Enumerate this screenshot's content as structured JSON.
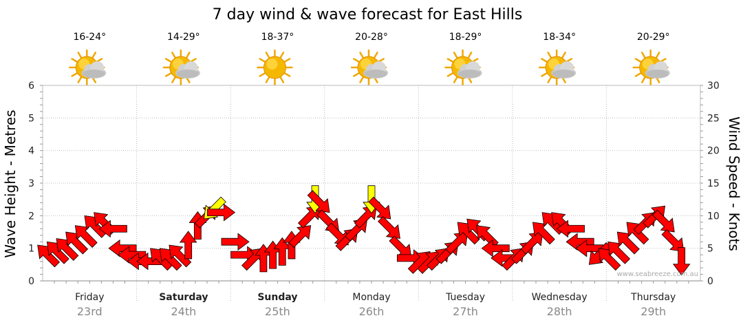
{
  "chart_data": {
    "type": "line",
    "title": "7 day wind & wave forecast for East Hills",
    "ylabel_left": "Wave Height - Metres",
    "ylabel_right": "Wind Speed - Knots",
    "ylim_left": [
      0,
      6
    ],
    "ylim_right": [
      0,
      30
    ],
    "left_ticks": [
      "0",
      "1",
      "2",
      "3",
      "4",
      "5",
      "6"
    ],
    "right_ticks": [
      "0",
      "5",
      "10",
      "15",
      "20",
      "25",
      "30"
    ],
    "grid": true,
    "credit": "www.seabreeze.com.au",
    "days": [
      {
        "name": "Friday",
        "date": "23rd",
        "bold": false,
        "temp": "16-24°",
        "icon": "sun-cloud-icon"
      },
      {
        "name": "Saturday",
        "date": "24th",
        "bold": true,
        "temp": "14-29°",
        "icon": "sun-cloud-icon"
      },
      {
        "name": "Sunday",
        "date": "25th",
        "bold": true,
        "temp": "18-37°",
        "icon": "sun-icon"
      },
      {
        "name": "Monday",
        "date": "26th",
        "bold": false,
        "temp": "20-28°",
        "icon": "sun-cloud-icon"
      },
      {
        "name": "Tuesday",
        "date": "27th",
        "bold": false,
        "temp": "18-29°",
        "icon": "sun-cloud-icon"
      },
      {
        "name": "Wednesday",
        "date": "28th",
        "bold": false,
        "temp": "18-34°",
        "icon": "sun-cloud-icon"
      },
      {
        "name": "Thursday",
        "date": "29th",
        "bold": false,
        "temp": "20-29°",
        "icon": "sun-cloud-icon"
      }
    ],
    "series": [
      {
        "name": "Wind Speed",
        "unit": "knots",
        "colors": {
          "normal": "#ff0000",
          "highlight": "#ffff00",
          "stroke": "#000000"
        },
        "points": [
          {
            "t": 0.05,
            "kn": 4.0,
            "dir": "SE"
          },
          {
            "t": 0.15,
            "kn": 4.5,
            "dir": "SE"
          },
          {
            "t": 0.25,
            "kn": 5.0,
            "dir": "SE"
          },
          {
            "t": 0.35,
            "kn": 6.0,
            "dir": "SE"
          },
          {
            "t": 0.45,
            "kn": 7.0,
            "dir": "SE"
          },
          {
            "t": 0.55,
            "kn": 8.5,
            "dir": "SE"
          },
          {
            "t": 0.65,
            "kn": 9.0,
            "dir": "SE"
          },
          {
            "t": 0.75,
            "kn": 8.0,
            "dir": "E"
          },
          {
            "t": 0.85,
            "kn": 5.0,
            "dir": "E"
          },
          {
            "t": 0.95,
            "kn": 4.0,
            "dir": "E"
          },
          {
            "t": 1.05,
            "kn": 3.0,
            "dir": "E"
          },
          {
            "t": 1.15,
            "kn": 3.0,
            "dir": "E"
          },
          {
            "t": 1.25,
            "kn": 3.5,
            "dir": "SE"
          },
          {
            "t": 1.35,
            "kn": 3.5,
            "dir": "SE"
          },
          {
            "t": 1.45,
            "kn": 4.0,
            "dir": "SE"
          },
          {
            "t": 1.55,
            "kn": 5.5,
            "dir": "S"
          },
          {
            "t": 1.65,
            "kn": 8.5,
            "dir": "S"
          },
          {
            "t": 1.75,
            "kn": 10.0,
            "dir": "SW"
          },
          {
            "t": 1.82,
            "kn": 11.0,
            "dir": "NE",
            "hl": true
          },
          {
            "t": 1.9,
            "kn": 10.5,
            "dir": "W"
          },
          {
            "t": 2.05,
            "kn": 6.0,
            "dir": "W"
          },
          {
            "t": 2.15,
            "kn": 4.0,
            "dir": "W"
          },
          {
            "t": 2.25,
            "kn": 3.5,
            "dir": "SW"
          },
          {
            "t": 2.35,
            "kn": 3.5,
            "dir": "S"
          },
          {
            "t": 2.45,
            "kn": 4.0,
            "dir": "S"
          },
          {
            "t": 2.55,
            "kn": 4.5,
            "dir": "S"
          },
          {
            "t": 2.65,
            "kn": 5.5,
            "dir": "S"
          },
          {
            "t": 2.75,
            "kn": 7.0,
            "dir": "SW"
          },
          {
            "t": 2.85,
            "kn": 10.0,
            "dir": "SW"
          },
          {
            "t": 2.9,
            "kn": 12.5,
            "dir": "N",
            "hl": true
          },
          {
            "t": 2.95,
            "kn": 12.0,
            "dir": "NW"
          },
          {
            "t": 3.05,
            "kn": 9.0,
            "dir": "NW"
          },
          {
            "t": 3.15,
            "kn": 7.0,
            "dir": "NW"
          },
          {
            "t": 3.25,
            "kn": 6.5,
            "dir": "SW"
          },
          {
            "t": 3.35,
            "kn": 8.0,
            "dir": "SW"
          },
          {
            "t": 3.45,
            "kn": 10.0,
            "dir": "SW"
          },
          {
            "t": 3.5,
            "kn": 12.5,
            "dir": "N",
            "hl": true
          },
          {
            "t": 3.6,
            "kn": 11.0,
            "dir": "NW"
          },
          {
            "t": 3.7,
            "kn": 8.0,
            "dir": "NW"
          },
          {
            "t": 3.82,
            "kn": 5.0,
            "dir": "NW"
          },
          {
            "t": 3.92,
            "kn": 3.5,
            "dir": "W"
          },
          {
            "t": 4.02,
            "kn": 3.0,
            "dir": "SW"
          },
          {
            "t": 4.12,
            "kn": 3.0,
            "dir": "SW"
          },
          {
            "t": 4.22,
            "kn": 3.5,
            "dir": "SW"
          },
          {
            "t": 4.32,
            "kn": 4.5,
            "dir": "SW"
          },
          {
            "t": 4.42,
            "kn": 6.0,
            "dir": "SW"
          },
          {
            "t": 4.52,
            "kn": 7.5,
            "dir": "SE"
          },
          {
            "t": 4.62,
            "kn": 8.0,
            "dir": "SE"
          },
          {
            "t": 4.72,
            "kn": 7.0,
            "dir": "SE"
          },
          {
            "t": 4.82,
            "kn": 5.0,
            "dir": "E"
          },
          {
            "t": 4.92,
            "kn": 3.5,
            "dir": "E"
          },
          {
            "t": 5.02,
            "kn": 3.5,
            "dir": "SW"
          },
          {
            "t": 5.12,
            "kn": 4.5,
            "dir": "SW"
          },
          {
            "t": 5.22,
            "kn": 6.0,
            "dir": "SW"
          },
          {
            "t": 5.32,
            "kn": 7.5,
            "dir": "SE"
          },
          {
            "t": 5.42,
            "kn": 9.0,
            "dir": "SE"
          },
          {
            "t": 5.52,
            "kn": 9.0,
            "dir": "SE"
          },
          {
            "t": 5.62,
            "kn": 8.0,
            "dir": "E"
          },
          {
            "t": 5.72,
            "kn": 6.0,
            "dir": "E"
          },
          {
            "t": 5.82,
            "kn": 5.0,
            "dir": "E"
          },
          {
            "t": 5.92,
            "kn": 4.0,
            "dir": "NE"
          },
          {
            "t": 6.02,
            "kn": 3.5,
            "dir": "SE"
          },
          {
            "t": 6.12,
            "kn": 4.5,
            "dir": "SE"
          },
          {
            "t": 6.22,
            "kn": 6.0,
            "dir": "SE"
          },
          {
            "t": 6.32,
            "kn": 7.5,
            "dir": "SE"
          },
          {
            "t": 6.42,
            "kn": 9.0,
            "dir": "SW"
          },
          {
            "t": 6.52,
            "kn": 10.0,
            "dir": "SW"
          },
          {
            "t": 6.62,
            "kn": 9.0,
            "dir": "NW"
          },
          {
            "t": 6.72,
            "kn": 6.0,
            "dir": "NW"
          },
          {
            "t": 6.8,
            "kn": 3.0,
            "dir": "N"
          }
        ]
      }
    ]
  }
}
